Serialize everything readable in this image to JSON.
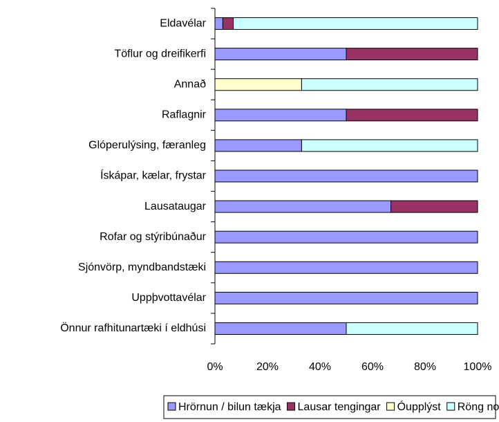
{
  "chart_data": {
    "type": "stacked-barh",
    "categories": [
      "Eldavélar",
      "Töflur og dreifikerfi",
      "Annað",
      "Raflagnir",
      "Glóperulýsing, færanleg",
      "Ískápar, kælar, frystar",
      "Lausataugar",
      "Rofar og stýribúnaður",
      "Sjónvörp, myndbandstæki",
      "Uppþvottavélar",
      "Önnur rafhitunartæki í eldhúsi"
    ],
    "series": [
      {
        "name": "Hrörnun / bilun tækja",
        "color": "#9999ff",
        "values": [
          3,
          50,
          0,
          50,
          33,
          100,
          67,
          100,
          100,
          100,
          50
        ]
      },
      {
        "name": "Lausar tengingar",
        "color": "#993366",
        "values": [
          4,
          50,
          0,
          50,
          0,
          0,
          33,
          0,
          0,
          0,
          0
        ]
      },
      {
        "name": "Óupplýst",
        "color": "#ffffcc",
        "values": [
          0,
          0,
          33,
          0,
          0,
          0,
          0,
          0,
          0,
          0,
          0
        ]
      },
      {
        "name": "Röng notkun",
        "color": "#ccffff",
        "values": [
          93,
          0,
          67,
          0,
          67,
          0,
          0,
          0,
          0,
          0,
          50
        ]
      }
    ],
    "xlim": [
      0,
      100
    ],
    "xticks": [
      {
        "value": 0,
        "label": "0%"
      },
      {
        "value": 20,
        "label": "20%"
      },
      {
        "value": 40,
        "label": "40%"
      },
      {
        "value": 60,
        "label": "60%"
      },
      {
        "value": 80,
        "label": "80%"
      },
      {
        "value": 100,
        "label": "100%"
      }
    ],
    "legend": "bottom"
  }
}
